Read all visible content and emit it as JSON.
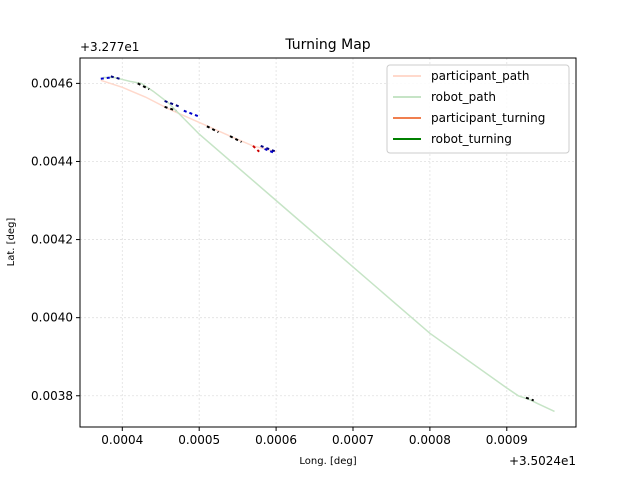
{
  "chart_data": {
    "type": "line",
    "title": "Turning Map",
    "xlabel": "Long. [deg]",
    "ylabel": "Lat. [deg]",
    "x_offset_label": "+3.5024e1",
    "y_offset_label": "+3.277e1",
    "xlim": [
      0.000345,
      0.00099
    ],
    "ylim": [
      0.00372,
      0.004665
    ],
    "x_ticks": [
      0.0004,
      0.0005,
      0.0006,
      0.0007,
      0.0008,
      0.0009
    ],
    "x_tick_labels": [
      "0.0004",
      "0.0005",
      "0.0006",
      "0.0007",
      "0.0008",
      "0.0009"
    ],
    "y_ticks": [
      0.0038,
      0.004,
      0.0042,
      0.0044,
      0.0046
    ],
    "y_tick_labels": [
      "0.0038",
      "0.0040",
      "0.0042",
      "0.0044",
      "0.0046"
    ],
    "grid": true,
    "legend_position": "top-right",
    "series": [
      {
        "name": "participant_path",
        "color": "#ffd9cc",
        "x": [
          0.000372,
          0.0004,
          0.00043,
          0.00046,
          0.0005,
          0.00054,
          0.00057,
          0.00059,
          0.0006
        ],
        "y": [
          0.004608,
          0.00459,
          0.004565,
          0.004535,
          0.0045,
          0.004465,
          0.00444,
          0.00443,
          0.004425
        ]
      },
      {
        "name": "robot_path",
        "color": "#c6e4c6",
        "x": [
          0.000375,
          0.00039,
          0.00041,
          0.000425,
          0.00044,
          0.00046,
          0.0005,
          0.0006,
          0.0007,
          0.0008,
          0.0009,
          0.000915,
          0.00093,
          0.00094,
          0.000962
        ],
        "y": [
          0.004615,
          0.004615,
          0.004605,
          0.0046,
          0.00458,
          0.00455,
          0.00447,
          0.0043,
          0.00413,
          0.00396,
          0.00382,
          0.0038,
          0.00379,
          0.00378,
          0.00376
        ]
      },
      {
        "name": "participant_turning",
        "color": "#f07f4f",
        "x": [],
        "y": []
      },
      {
        "name": "robot_turning",
        "color": "#008000",
        "x": [],
        "y": []
      }
    ],
    "turning_marks": [
      {
        "color": "#0000cc",
        "x": [
          0.000372,
          0.000385
        ],
        "y": [
          0.004612,
          0.004615
        ]
      },
      {
        "color": "#000080",
        "x": [
          0.000385,
          0.0004
        ],
        "y": [
          0.004618,
          0.00461
        ]
      },
      {
        "color": "#000000",
        "x": [
          0.00042,
          0.000435
        ],
        "y": [
          0.0046,
          0.004585
        ]
      },
      {
        "color": "#000080",
        "x": [
          0.000455,
          0.000475
        ],
        "y": [
          0.004555,
          0.00454
        ]
      },
      {
        "color": "#0000cc",
        "x": [
          0.00048,
          0.0005
        ],
        "y": [
          0.00453,
          0.004515
        ]
      },
      {
        "color": "#000000",
        "x": [
          0.000455,
          0.00047
        ],
        "y": [
          0.00454,
          0.00453
        ]
      },
      {
        "color": "#000000",
        "x": [
          0.00051,
          0.000525
        ],
        "y": [
          0.00449,
          0.004475
        ]
      },
      {
        "color": "#000000",
        "x": [
          0.00054,
          0.000555
        ],
        "y": [
          0.004465,
          0.00445
        ]
      },
      {
        "color": "#cc0000",
        "x": [
          0.00057,
          0.000578
        ],
        "y": [
          0.00444,
          0.004425
        ]
      },
      {
        "color": "#000080",
        "x": [
          0.00058,
          0.0006
        ],
        "y": [
          0.00444,
          0.004425
        ]
      },
      {
        "color": "#0000cc",
        "x": [
          0.000585,
          0.000598
        ],
        "y": [
          0.004432,
          0.004422
        ]
      },
      {
        "color": "#000000",
        "x": [
          0.000925,
          0.000935
        ],
        "y": [
          0.003795,
          0.003788
        ]
      }
    ]
  }
}
